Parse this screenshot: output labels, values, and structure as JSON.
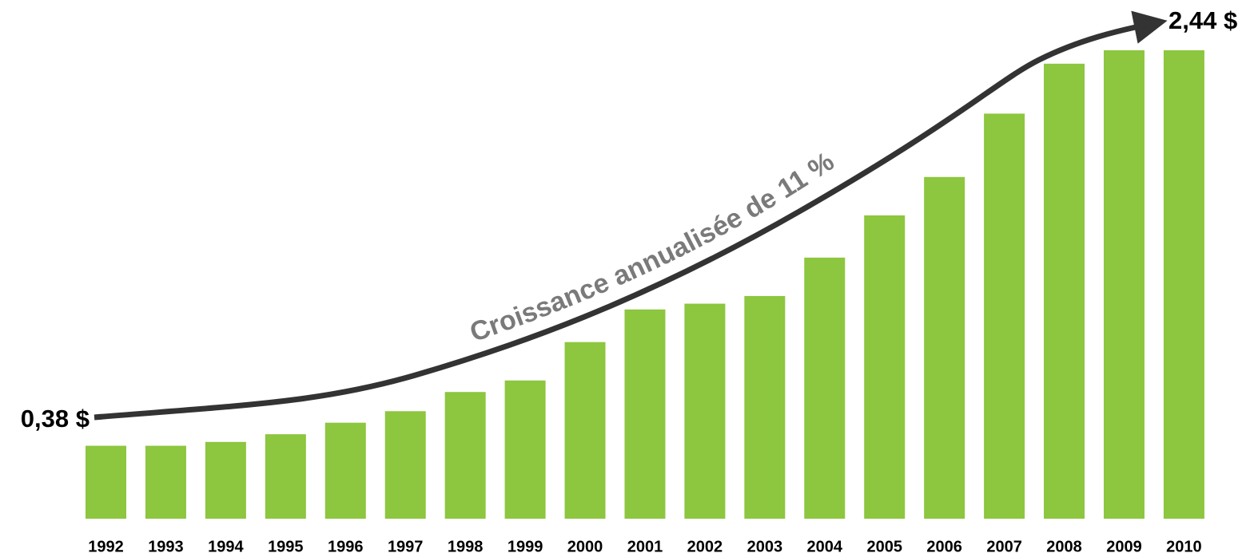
{
  "chart_data": {
    "type": "bar",
    "categories": [
      "1992",
      "1993",
      "1994",
      "1995",
      "1996",
      "1997",
      "1998",
      "1999",
      "2000",
      "2001",
      "2002",
      "2003",
      "2004",
      "2005",
      "2006",
      "2007",
      "2008",
      "2009",
      "2010"
    ],
    "values": [
      0.38,
      0.38,
      0.4,
      0.44,
      0.5,
      0.56,
      0.66,
      0.72,
      0.92,
      1.09,
      1.12,
      1.16,
      1.36,
      1.58,
      1.78,
      2.11,
      2.37,
      2.44,
      2.44
    ],
    "color": "#8dc63f",
    "start_label": "0,38 $",
    "end_label": "2,44 $",
    "annotation": "Croissance annualisée de 11 %"
  }
}
